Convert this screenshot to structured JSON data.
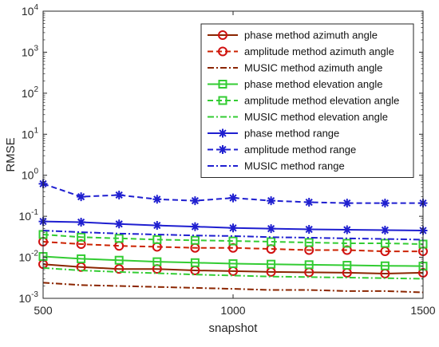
{
  "chart_data": {
    "type": "line",
    "xlabel": "snapshot",
    "ylabel": "RMSE",
    "xlim": [
      500,
      1500
    ],
    "ylim": [
      0.001,
      10000
    ],
    "yscale": "log",
    "grid": false,
    "legend_position": "top-right",
    "x": [
      500,
      600,
      700,
      800,
      900,
      1000,
      1100,
      1200,
      1300,
      1400,
      1500
    ],
    "xticks": [
      500,
      1000,
      1500
    ],
    "xtick_labels": [
      "500",
      "1000",
      "1500"
    ],
    "yticks": [
      0.001,
      0.01,
      0.1,
      1,
      10,
      100,
      1000,
      10000
    ],
    "ytick_labels": [
      {
        "base": "10",
        "exp": "-3"
      },
      {
        "base": "10",
        "exp": "-2"
      },
      {
        "base": "10",
        "exp": "-1"
      },
      {
        "base": "10",
        "exp": "0"
      },
      {
        "base": "10",
        "exp": "1"
      },
      {
        "base": "10",
        "exp": "2"
      },
      {
        "base": "10",
        "exp": "3"
      },
      {
        "base": "10",
        "exp": "4"
      }
    ],
    "series": [
      {
        "name": "phase method azimuth angle",
        "color": "#8B2500",
        "dash": "solid",
        "marker": "circle",
        "marker_color": "#d01010",
        "values": [
          0.0068,
          0.0058,
          0.0052,
          0.0052,
          0.0048,
          0.0046,
          0.0044,
          0.0043,
          0.0042,
          0.004,
          0.0042
        ]
      },
      {
        "name": "amplitude method azimuth angle",
        "color": "#cc2200",
        "dash": "dashed",
        "marker": "circle",
        "marker_color": "#d01010",
        "values": [
          0.024,
          0.021,
          0.019,
          0.018,
          0.017,
          0.017,
          0.016,
          0.015,
          0.015,
          0.014,
          0.014
        ]
      },
      {
        "name": "MUSIC method azimuth angle",
        "color": "#8B2500",
        "dash": "dashdot",
        "marker": "none",
        "values": [
          0.0024,
          0.0021,
          0.002,
          0.0019,
          0.0018,
          0.0017,
          0.0016,
          0.0016,
          0.0015,
          0.0015,
          0.0014
        ]
      },
      {
        "name": "phase method elevation angle",
        "color": "#33cc33",
        "dash": "solid",
        "marker": "square",
        "marker_color": "#33cc33",
        "values": [
          0.0105,
          0.0092,
          0.0085,
          0.0078,
          0.0074,
          0.007,
          0.0068,
          0.0066,
          0.0064,
          0.0062,
          0.0061
        ]
      },
      {
        "name": "amplitude method elevation angle",
        "color": "#33cc33",
        "dash": "dashed",
        "marker": "square",
        "marker_color": "#33cc33",
        "values": [
          0.036,
          0.031,
          0.029,
          0.027,
          0.026,
          0.025,
          0.024,
          0.023,
          0.022,
          0.022,
          0.021
        ]
      },
      {
        "name": "MUSIC method elevation angle",
        "color": "#33cc33",
        "dash": "dashdot",
        "marker": "none",
        "values": [
          0.0055,
          0.0048,
          0.0044,
          0.0041,
          0.0038,
          0.0036,
          0.0034,
          0.0033,
          0.0032,
          0.0031,
          0.003
        ]
      },
      {
        "name": "phase method range",
        "color": "#1f1fd0",
        "dash": "solid",
        "marker": "asterisk",
        "marker_color": "#1f1fd0",
        "values": [
          0.075,
          0.072,
          0.065,
          0.06,
          0.056,
          0.052,
          0.05,
          0.048,
          0.047,
          0.046,
          0.045
        ]
      },
      {
        "name": "amplitude method range",
        "color": "#1f1fd0",
        "dash": "dashed",
        "marker": "asterisk",
        "marker_color": "#1f1fd0",
        "values": [
          0.62,
          0.3,
          0.33,
          0.26,
          0.24,
          0.28,
          0.24,
          0.22,
          0.21,
          0.21,
          0.21
        ]
      },
      {
        "name": "MUSIC method range",
        "color": "#1f1fd0",
        "dash": "dashdot",
        "marker": "none",
        "values": [
          0.045,
          0.041,
          0.038,
          0.036,
          0.034,
          0.033,
          0.031,
          0.03,
          0.029,
          0.028,
          0.027
        ]
      }
    ]
  }
}
